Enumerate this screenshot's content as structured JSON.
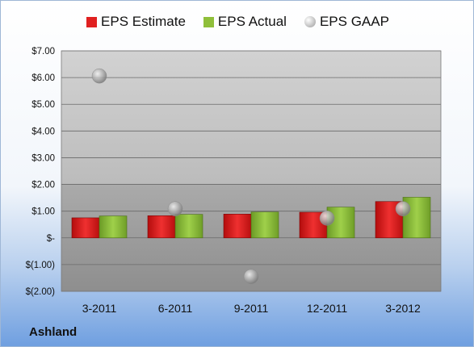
{
  "chart_data": {
    "type": "bar",
    "categories": [
      "3-2011",
      "6-2011",
      "9-2011",
      "12-2011",
      "3-2012"
    ],
    "series": [
      {
        "name": "EPS Estimate",
        "kind": "bar",
        "color": "#e02020",
        "values": [
          0.75,
          0.83,
          0.89,
          0.96,
          1.36
        ]
      },
      {
        "name": "EPS Actual",
        "kind": "bar",
        "color": "#8fbf3a",
        "values": [
          0.82,
          0.88,
          0.97,
          1.15,
          1.52
        ]
      },
      {
        "name": "EPS GAAP",
        "kind": "scatter",
        "color": "#c8c8c8",
        "values": [
          6.06,
          1.09,
          -1.45,
          0.74,
          1.09
        ]
      }
    ],
    "yticks": [
      "$7.00",
      "$6.00",
      "$5.00",
      "$4.00",
      "$3.00",
      "$2.00",
      "$1.00",
      "$-",
      "$(1.00)",
      "$(2.00)"
    ],
    "ylim": [
      -2,
      7
    ],
    "grid": true,
    "legend_position": "top"
  },
  "company": "Ashland"
}
